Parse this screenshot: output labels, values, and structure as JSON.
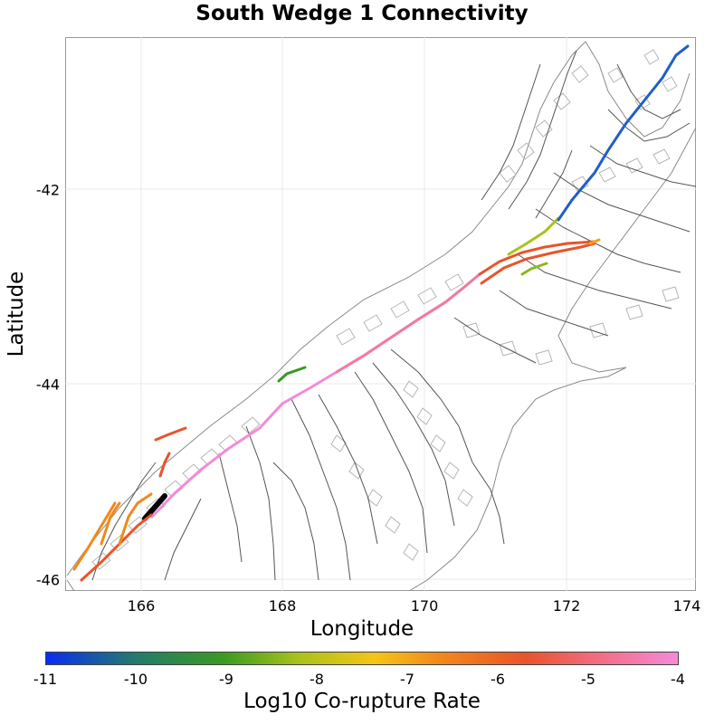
{
  "title": "South Wedge 1 Connectivity",
  "x_axis": {
    "label": "Longitude",
    "ticks": [
      "166",
      "168",
      "170",
      "172",
      "174"
    ]
  },
  "y_axis": {
    "label": "Latitude",
    "ticks": [
      "-42",
      "-44",
      "-46"
    ]
  },
  "colorbar": {
    "label": "Log10 Co-rupture Rate",
    "ticks": [
      "-11",
      "-10",
      "-9",
      "-8",
      "-7",
      "-6",
      "-5",
      "-4"
    ],
    "colors": [
      "#0a2cf0",
      "#3a9a22",
      "#f5c518",
      "#e8542a",
      "#f48ad8"
    ]
  },
  "map": {
    "lon_range": [
      165.3,
      174.1
    ],
    "lat_range": [
      -46.15,
      -40.45
    ],
    "grid": true
  }
}
